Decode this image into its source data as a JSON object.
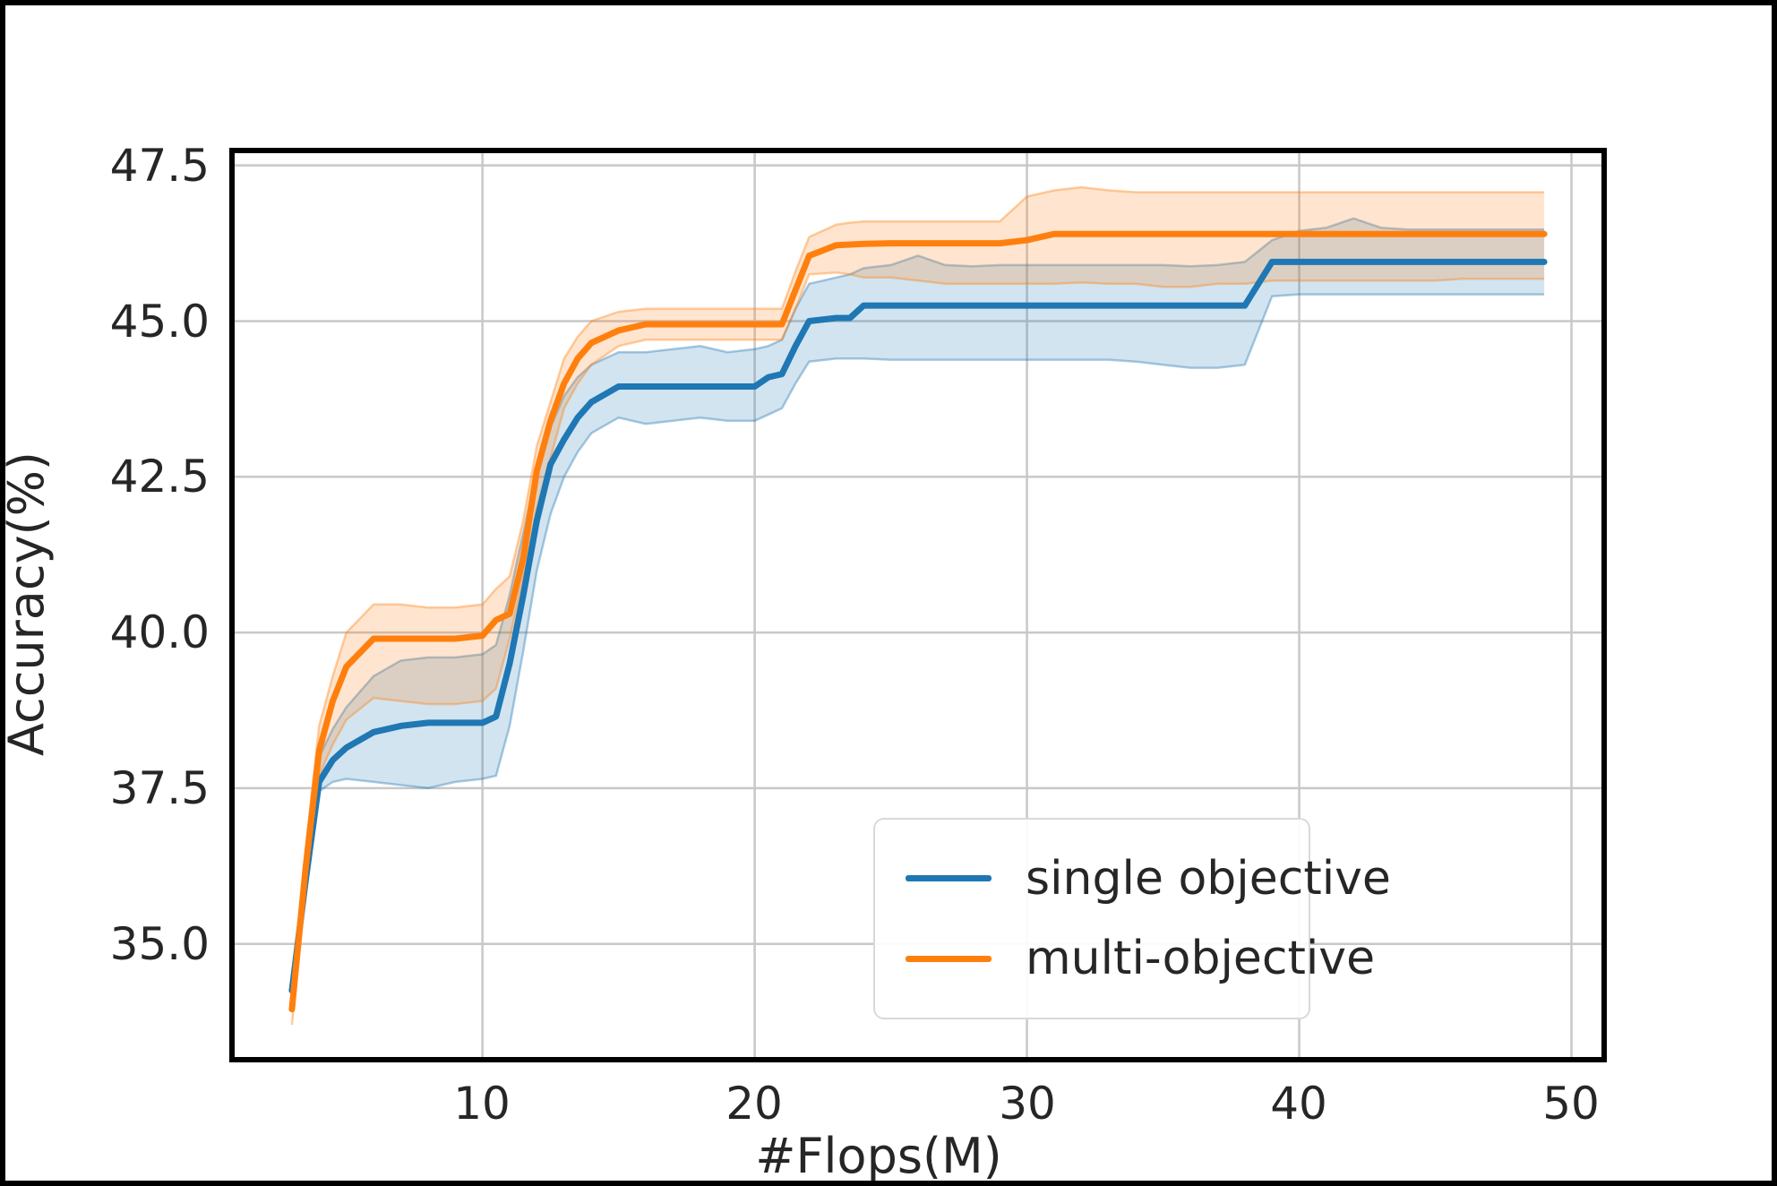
{
  "figure": {
    "background": "#ffffff",
    "frame_color": "#000000",
    "grid_color": "#c8c8c8",
    "text_color": "#262626"
  },
  "chart_data": {
    "type": "line",
    "title": "",
    "xlabel": "#Flops(M)",
    "ylabel": "Accuracy(%)",
    "xlim": [
      0.8,
      51.2
    ],
    "ylim": [
      33.14,
      47.74
    ],
    "grid": true,
    "legend_position": "lower right",
    "xticks": [
      10,
      20,
      30,
      40,
      50
    ],
    "xtick_labels": [
      "10",
      "20",
      "30",
      "40",
      "50"
    ],
    "yticks": [
      47.5,
      45.0,
      42.5,
      40.0,
      37.5,
      35.0
    ],
    "ytick_labels": [
      "47.5",
      "45.0",
      "42.5",
      "40.0",
      "37.5",
      "35.0"
    ],
    "x": [
      3,
      3.5,
      4,
      4.5,
      5,
      6,
      7,
      8,
      9,
      10,
      10.5,
      11,
      11.5,
      12,
      12.5,
      13,
      13.5,
      14,
      15,
      16,
      17,
      18,
      19,
      20,
      20.5,
      21,
      21.5,
      22,
      23,
      23.5,
      24,
      25,
      26,
      27,
      28,
      29,
      30,
      31,
      32,
      33,
      34,
      35,
      36,
      37,
      38,
      39,
      40,
      41,
      42,
      43,
      44,
      45,
      46,
      47,
      48,
      49
    ],
    "series": [
      {
        "name": "single objective",
        "color": "#1f77b4",
        "band_fill": "rgba(31,119,180,0.20)",
        "band_edge": "rgba(31,119,180,0.38)",
        "values": [
          34.25,
          36.0,
          37.6,
          37.95,
          38.15,
          38.4,
          38.5,
          38.55,
          38.55,
          38.55,
          38.65,
          39.5,
          40.6,
          41.8,
          42.7,
          43.1,
          43.45,
          43.7,
          43.95,
          43.95,
          43.95,
          43.95,
          43.95,
          43.95,
          44.1,
          44.15,
          44.6,
          45.0,
          45.05,
          45.05,
          45.25,
          45.25,
          45.25,
          45.25,
          45.25,
          45.25,
          45.25,
          45.25,
          45.25,
          45.25,
          45.25,
          45.25,
          45.25,
          45.25,
          45.25,
          45.95,
          45.95,
          45.95,
          45.95,
          45.95,
          45.95,
          45.95,
          45.95,
          45.95,
          45.95,
          45.95
        ],
        "band_lower": [
          34.1,
          35.8,
          37.45,
          37.6,
          37.65,
          37.6,
          37.55,
          37.5,
          37.6,
          37.65,
          37.7,
          38.5,
          39.7,
          41.0,
          41.9,
          42.5,
          42.9,
          43.2,
          43.45,
          43.35,
          43.4,
          43.45,
          43.4,
          43.4,
          43.5,
          43.6,
          44.0,
          44.35,
          44.4,
          44.4,
          44.4,
          44.38,
          44.38,
          44.38,
          44.38,
          44.38,
          44.38,
          44.38,
          44.38,
          44.38,
          44.35,
          44.3,
          44.25,
          44.25,
          44.3,
          45.4,
          45.43,
          45.43,
          45.43,
          45.43,
          45.43,
          45.43,
          45.43,
          45.43,
          45.43,
          45.43
        ],
        "band_upper": [
          34.4,
          36.3,
          38.0,
          38.45,
          38.8,
          39.3,
          39.55,
          39.6,
          39.6,
          39.65,
          39.8,
          40.6,
          41.6,
          42.6,
          43.3,
          43.8,
          44.1,
          44.3,
          44.5,
          44.5,
          44.55,
          44.6,
          44.5,
          44.55,
          44.6,
          44.7,
          45.2,
          45.6,
          45.7,
          45.75,
          45.85,
          45.9,
          46.05,
          45.9,
          45.88,
          45.9,
          45.9,
          45.9,
          45.9,
          45.9,
          45.9,
          45.9,
          45.88,
          45.9,
          45.95,
          46.3,
          46.45,
          46.5,
          46.65,
          46.5,
          46.47,
          46.47,
          46.47,
          46.47,
          46.47,
          46.47
        ]
      },
      {
        "name": "multi-objective",
        "color": "#ff7f0e",
        "band_fill": "rgba(255,127,14,0.20)",
        "band_edge": "rgba(255,127,14,0.38)",
        "values": [
          33.95,
          36.2,
          38.1,
          38.9,
          39.45,
          39.9,
          39.9,
          39.9,
          39.9,
          39.95,
          40.2,
          40.3,
          41.2,
          42.6,
          43.4,
          44.0,
          44.4,
          44.65,
          44.85,
          44.95,
          44.95,
          44.95,
          44.95,
          44.95,
          44.95,
          44.95,
          45.5,
          46.05,
          46.22,
          46.23,
          46.24,
          46.25,
          46.25,
          46.25,
          46.25,
          46.25,
          46.3,
          46.4,
          46.4,
          46.4,
          46.4,
          46.4,
          46.4,
          46.4,
          46.4,
          46.4,
          46.4,
          46.4,
          46.4,
          46.4,
          46.4,
          46.4,
          46.4,
          46.4,
          46.4,
          46.4
        ],
        "band_lower": [
          33.7,
          35.9,
          37.7,
          38.2,
          38.6,
          38.95,
          38.9,
          38.85,
          38.85,
          38.9,
          39.1,
          39.9,
          40.9,
          42.0,
          42.8,
          43.6,
          44.0,
          44.3,
          44.6,
          44.7,
          44.7,
          44.7,
          44.7,
          44.7,
          44.7,
          44.7,
          45.2,
          45.75,
          45.78,
          45.75,
          45.7,
          45.7,
          45.65,
          45.6,
          45.6,
          45.6,
          45.6,
          45.6,
          45.62,
          45.6,
          45.6,
          45.55,
          45.55,
          45.6,
          45.6,
          45.65,
          45.65,
          45.65,
          45.65,
          45.65,
          45.65,
          45.65,
          45.68,
          45.68,
          45.68,
          45.68
        ],
        "band_upper": [
          34.1,
          36.5,
          38.5,
          39.3,
          40.0,
          40.45,
          40.45,
          40.4,
          40.4,
          40.45,
          40.7,
          40.9,
          41.8,
          43.0,
          43.7,
          44.4,
          44.75,
          45.0,
          45.15,
          45.2,
          45.2,
          45.2,
          45.2,
          45.2,
          45.2,
          45.2,
          45.8,
          46.35,
          46.55,
          46.58,
          46.6,
          46.6,
          46.6,
          46.6,
          46.6,
          46.6,
          47.0,
          47.1,
          47.15,
          47.1,
          47.07,
          47.07,
          47.07,
          47.07,
          47.07,
          47.07,
          47.07,
          47.07,
          47.07,
          47.07,
          47.07,
          47.07,
          47.07,
          47.07,
          47.07,
          47.07
        ]
      }
    ]
  },
  "legend": {
    "items": [
      {
        "label": "single objective",
        "color": "#1f77b4"
      },
      {
        "label": "multi-objective",
        "color": "#ff7f0e"
      }
    ]
  }
}
